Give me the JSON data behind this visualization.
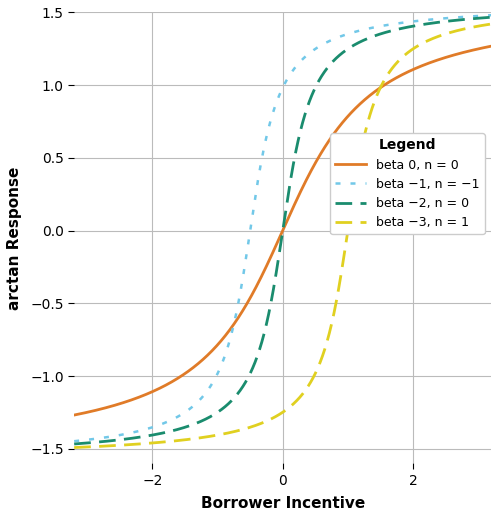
{
  "title": "",
  "xlabel": "Borrower Incentive",
  "ylabel": "arctan Response",
  "xlim": [
    -3.2,
    3.2
  ],
  "ylim": [
    -1.6,
    1.5
  ],
  "xticks": [
    -2,
    0,
    2
  ],
  "yticks": [
    -1.5,
    -1.0,
    -0.5,
    0.0,
    0.5,
    1.0,
    1.5
  ],
  "curves": [
    {
      "label": "beta 0, n = 0",
      "slope": 1.0,
      "shift": 0.0,
      "color": "#E07B28",
      "linestyle": "solid",
      "linewidth": 2.0,
      "dashes": []
    },
    {
      "label": "beta −1, n = −1",
      "slope": 3.0,
      "shift": -0.5,
      "color": "#72C8E8",
      "linestyle": "dashed",
      "linewidth": 1.8,
      "dashes": [
        2,
        3
      ]
    },
    {
      "label": "beta −2, n = 0",
      "slope": 3.0,
      "shift": 0.0,
      "color": "#1A8C6E",
      "linestyle": "dashed",
      "linewidth": 2.0,
      "dashes": [
        5,
        3
      ]
    },
    {
      "label": "beta −3, n = 1",
      "slope": 3.0,
      "shift": 1.0,
      "color": "#E0D020",
      "linestyle": "dashed",
      "linewidth": 2.0,
      "dashes": [
        5,
        3
      ]
    }
  ],
  "legend_title": "Legend",
  "background_color": "#FFFFFF",
  "grid_color": "#BBBBBB"
}
